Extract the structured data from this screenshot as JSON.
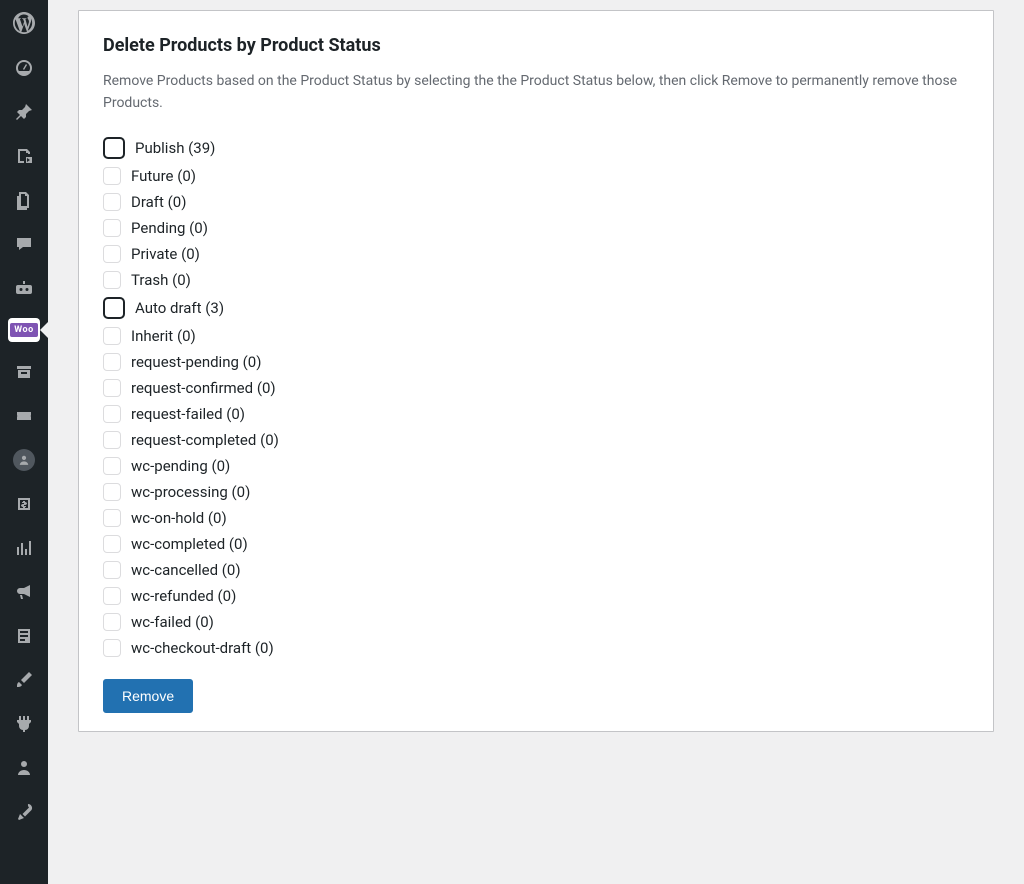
{
  "panel": {
    "title": "Delete Products by Product Status",
    "description": "Remove Products based on the Product Status by selecting the the Product Status below, then click Remove to permanently remove those Products.",
    "remove_button": "Remove"
  },
  "statuses": [
    {
      "label": "Publish",
      "count": 39,
      "prominent": true
    },
    {
      "label": "Future",
      "count": 0,
      "prominent": false
    },
    {
      "label": "Draft",
      "count": 0,
      "prominent": false
    },
    {
      "label": "Pending",
      "count": 0,
      "prominent": false
    },
    {
      "label": "Private",
      "count": 0,
      "prominent": false
    },
    {
      "label": "Trash",
      "count": 0,
      "prominent": false
    },
    {
      "label": "Auto draft",
      "count": 3,
      "prominent": true
    },
    {
      "label": "Inherit",
      "count": 0,
      "prominent": false
    },
    {
      "label": "request-pending",
      "count": 0,
      "prominent": false
    },
    {
      "label": "request-confirmed",
      "count": 0,
      "prominent": false
    },
    {
      "label": "request-failed",
      "count": 0,
      "prominent": false
    },
    {
      "label": "request-completed",
      "count": 0,
      "prominent": false
    },
    {
      "label": "wc-pending",
      "count": 0,
      "prominent": false
    },
    {
      "label": "wc-processing",
      "count": 0,
      "prominent": false
    },
    {
      "label": "wc-on-hold",
      "count": 0,
      "prominent": false
    },
    {
      "label": "wc-completed",
      "count": 0,
      "prominent": false
    },
    {
      "label": "wc-cancelled",
      "count": 0,
      "prominent": false
    },
    {
      "label": "wc-refunded",
      "count": 0,
      "prominent": false
    },
    {
      "label": "wc-failed",
      "count": 0,
      "prominent": false
    },
    {
      "label": "wc-checkout-draft",
      "count": 0,
      "prominent": false
    }
  ],
  "sidebar": {
    "woo_badge": "Woo",
    "icons": [
      "wordpress",
      "dashboard",
      "pin",
      "media",
      "pages",
      "comments",
      "robot",
      "woo",
      "archive",
      "ticket",
      "avatar",
      "money",
      "analytics",
      "megaphone",
      "form",
      "brush",
      "plug",
      "user",
      "wrench"
    ]
  },
  "colors": {
    "sidebar_bg": "#1d2327",
    "icon_default": "#a7aaad",
    "accent": "#2271b1",
    "woo_purple": "#7f54b3",
    "page_bg": "#f0f0f1",
    "border": "#c3c4c7",
    "text": "#1d2327",
    "muted_text": "#646970"
  }
}
